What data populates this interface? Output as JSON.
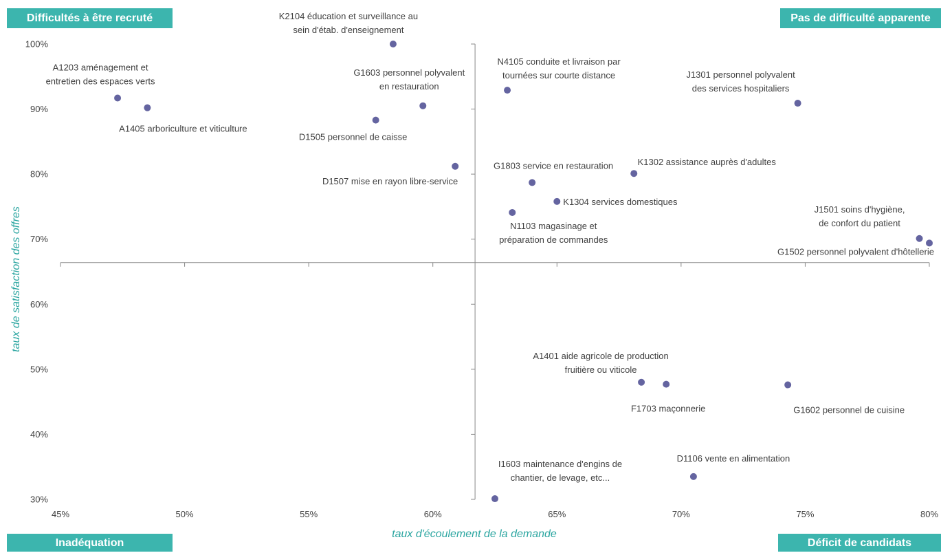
{
  "chart_data": {
    "type": "scatter",
    "title": "",
    "xlabel": "taux d'écoulement de la demande",
    "ylabel": "taux de satisfaction des offres",
    "xlim": [
      0.45,
      0.8
    ],
    "ylim": [
      0.3,
      1.0
    ],
    "x_ticks": [
      "45%",
      "50%",
      "55%",
      "60%",
      "65%",
      "70%",
      "75%",
      "80%"
    ],
    "y_ticks": [
      "30%",
      "40%",
      "50%",
      "60%",
      "70%",
      "80%",
      "90%",
      "100%"
    ],
    "crosshair": {
      "x": 0.617,
      "y": 0.664
    },
    "grid": false,
    "marker_color": "#6464a0",
    "quadrants": {
      "top_left": "Difficultés à être recruté",
      "top_right": "Pas de difficulté apparente",
      "bottom_left": "Inadéquation",
      "bottom_right": "Déficit de candidats",
      "color": "#3cb5ae"
    },
    "points": [
      {
        "x": 0.473,
        "y": 0.917,
        "label": [
          "A1203 aménagement  et",
          "entretien  des espaces verts"
        ]
      },
      {
        "x": 0.485,
        "y": 0.902,
        "label": [
          "A1405  arboriculture et viticulture"
        ]
      },
      {
        "x": 0.584,
        "y": 1.0,
        "label": [
          "K2104 éducation et surveillance au",
          "sein d'étab. d'enseignement"
        ]
      },
      {
        "x": 0.596,
        "y": 0.905,
        "label": [
          "G1603 personnel polyvalent",
          "en restauration"
        ]
      },
      {
        "x": 0.577,
        "y": 0.883,
        "label": [
          "D1505 personnel de caisse"
        ]
      },
      {
        "x": 0.609,
        "y": 0.812,
        "label": [
          "D1507 mise en rayon libre-service"
        ]
      },
      {
        "x": 0.63,
        "y": 0.929,
        "label": [
          "N4105  conduite et livraison par",
          "tournées  sur courte distance"
        ]
      },
      {
        "x": 0.747,
        "y": 0.909,
        "label": [
          "J1301 personnel polyvalent",
          "des services hospitaliers"
        ]
      },
      {
        "x": 0.64,
        "y": 0.787,
        "label": [
          "G1803 service en  restauration"
        ]
      },
      {
        "x": 0.681,
        "y": 0.801,
        "label": [
          "K1302 assistance auprès d'adultes"
        ]
      },
      {
        "x": 0.65,
        "y": 0.758,
        "label": [
          "K1304 services domestiques"
        ]
      },
      {
        "x": 0.632,
        "y": 0.741,
        "label": [
          "N1103 magasinage et",
          "préparation de commandes"
        ]
      },
      {
        "x": 0.796,
        "y": 0.701,
        "label": [
          "J1501 soins d'hygiène,",
          "de confort du patient"
        ]
      },
      {
        "x": 0.8,
        "y": 0.694,
        "label": [
          "G1502 personnel polyvalent d'hôtellerie"
        ]
      },
      {
        "x": 0.684,
        "y": 0.48,
        "label": [
          "A1401 aide agricole de production",
          "fruitière ou viticole"
        ]
      },
      {
        "x": 0.694,
        "y": 0.477,
        "label": [
          "F1703 maçonnerie"
        ]
      },
      {
        "x": 0.743,
        "y": 0.476,
        "label": [
          "G1602 personnel de cuisine"
        ]
      },
      {
        "x": 0.705,
        "y": 0.335,
        "label": [
          "D1106 vente  en alimentation"
        ]
      },
      {
        "x": 0.625,
        "y": 0.301,
        "label": [
          "I1603 maintenance d'engins de",
          "chantier, de levage, etc..."
        ]
      }
    ]
  }
}
